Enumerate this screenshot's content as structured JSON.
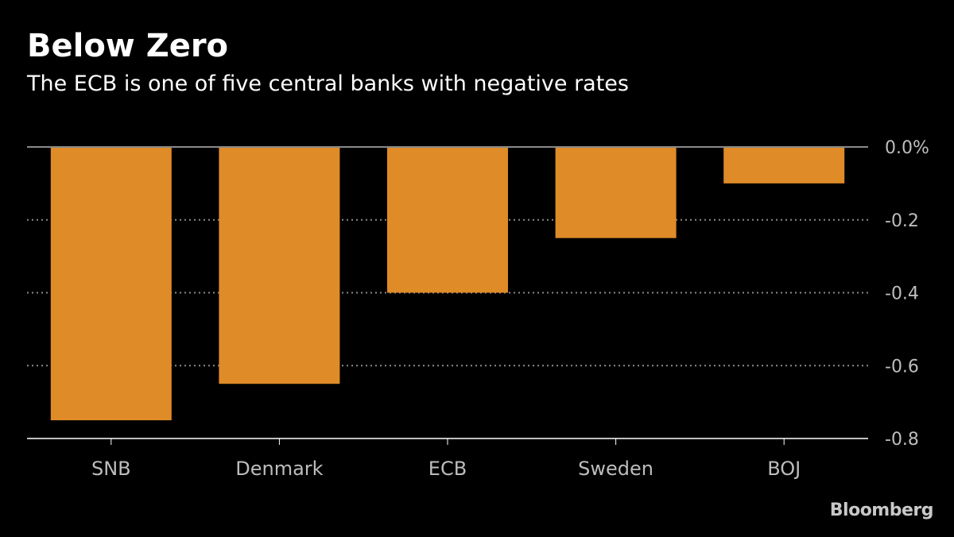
{
  "title": "Below Zero",
  "subtitle": "The ECB is one of five central banks with negative rates",
  "source": "Bloomberg",
  "colors": {
    "background": "#000000",
    "bar": "#de8b28",
    "grid": "#8a8a8a",
    "zero_line": "#8a8a8a",
    "axis": "#ffffff",
    "label": "#bdbdbd"
  },
  "chart_data": {
    "type": "bar",
    "categories": [
      "SNB",
      "Denmark",
      "ECB",
      "Sweden",
      "BOJ"
    ],
    "values": [
      -0.75,
      -0.65,
      -0.4,
      -0.25,
      -0.1
    ],
    "yticks": [
      "0.0%",
      "-0.2",
      "-0.4",
      "-0.6",
      "-0.8"
    ],
    "ytick_values": [
      0.0,
      -0.2,
      -0.4,
      -0.6,
      -0.8
    ],
    "ylim": [
      -0.8,
      0.0
    ],
    "y_axis_side": "right",
    "grid": "dotted horizontal"
  }
}
